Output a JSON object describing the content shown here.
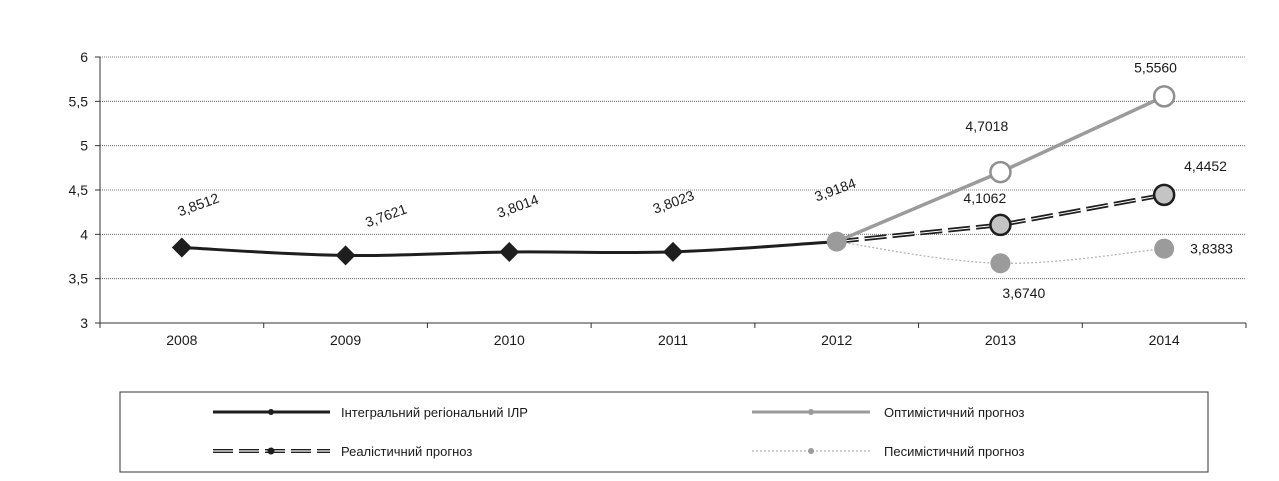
{
  "chart_data": {
    "type": "line",
    "categories": [
      "2008",
      "2009",
      "2010",
      "2011",
      "2012",
      "2013",
      "2014"
    ],
    "ylim": [
      3,
      6
    ],
    "yticks": [
      "3",
      "3,5",
      "4",
      "4,5",
      "5",
      "5,5",
      "6"
    ],
    "grid": true,
    "legend_position": "bottom",
    "series": [
      {
        "key": "integral",
        "name": "Інтегральний регіональний ІЛР",
        "color": "#1e1e1e",
        "marker": "diamond",
        "values": [
          3.8512,
          3.7621,
          3.8014,
          3.8023,
          3.9184,
          null,
          null
        ],
        "labels": [
          "3,8512",
          "3,7621",
          "3,8014",
          "3,8023",
          "3,9184",
          "",
          ""
        ]
      },
      {
        "key": "optimistic",
        "name": "Оптимістичний прогноз",
        "color": "#9b9b9b",
        "marker": "open-circle",
        "values": [
          null,
          null,
          null,
          null,
          3.9184,
          4.7018,
          5.556
        ],
        "labels": [
          "",
          "",
          "",
          "",
          "",
          "4,7018",
          "5,5560"
        ]
      },
      {
        "key": "realistic",
        "name": "Реалістичний  прогноз",
        "color": "#1e1e1e",
        "marker": "circle",
        "values": [
          null,
          null,
          null,
          null,
          3.9184,
          4.1062,
          4.4452
        ],
        "labels": [
          "",
          "",
          "",
          "",
          "",
          "4,1062",
          "4,4452"
        ]
      },
      {
        "key": "pessimistic",
        "name": "Песимістичний прогноз",
        "color": "#b5b5b5",
        "marker": "filled-circle",
        "values": [
          null,
          null,
          null,
          null,
          3.9184,
          3.674,
          3.8383
        ],
        "labels": [
          "",
          "",
          "",
          "",
          "",
          "3,6740",
          "3,8383"
        ]
      }
    ]
  }
}
